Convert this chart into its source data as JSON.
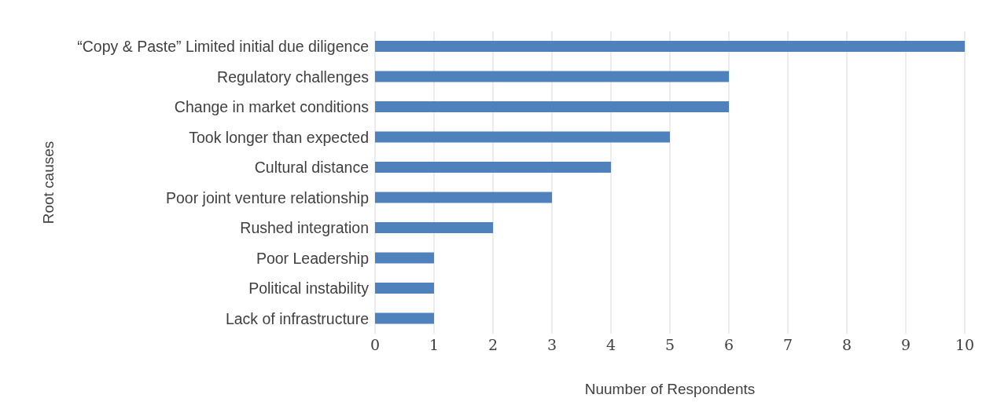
{
  "chart_data": {
    "type": "bar",
    "orientation": "horizontal",
    "xlabel": "Nuumber of Respondents",
    "ylabel": "Root causes",
    "categories": [
      "“Copy & Paste” Limited initial due diligence",
      "Regulatory challenges",
      "Change in market conditions",
      "Took longer than expected",
      "Cultural distance",
      "Poor joint venture relationship",
      "Rushed integration",
      "Poor Leadership",
      "Political instability",
      "Lack of infrastructure"
    ],
    "values": [
      10,
      6,
      6,
      5,
      4,
      3,
      2,
      1,
      1,
      1
    ],
    "color": "#4f81bd",
    "xlim": [
      0,
      10
    ],
    "xticks": [
      0,
      1,
      2,
      3,
      4,
      5,
      6,
      7,
      8,
      9,
      10
    ],
    "grid": "x"
  }
}
